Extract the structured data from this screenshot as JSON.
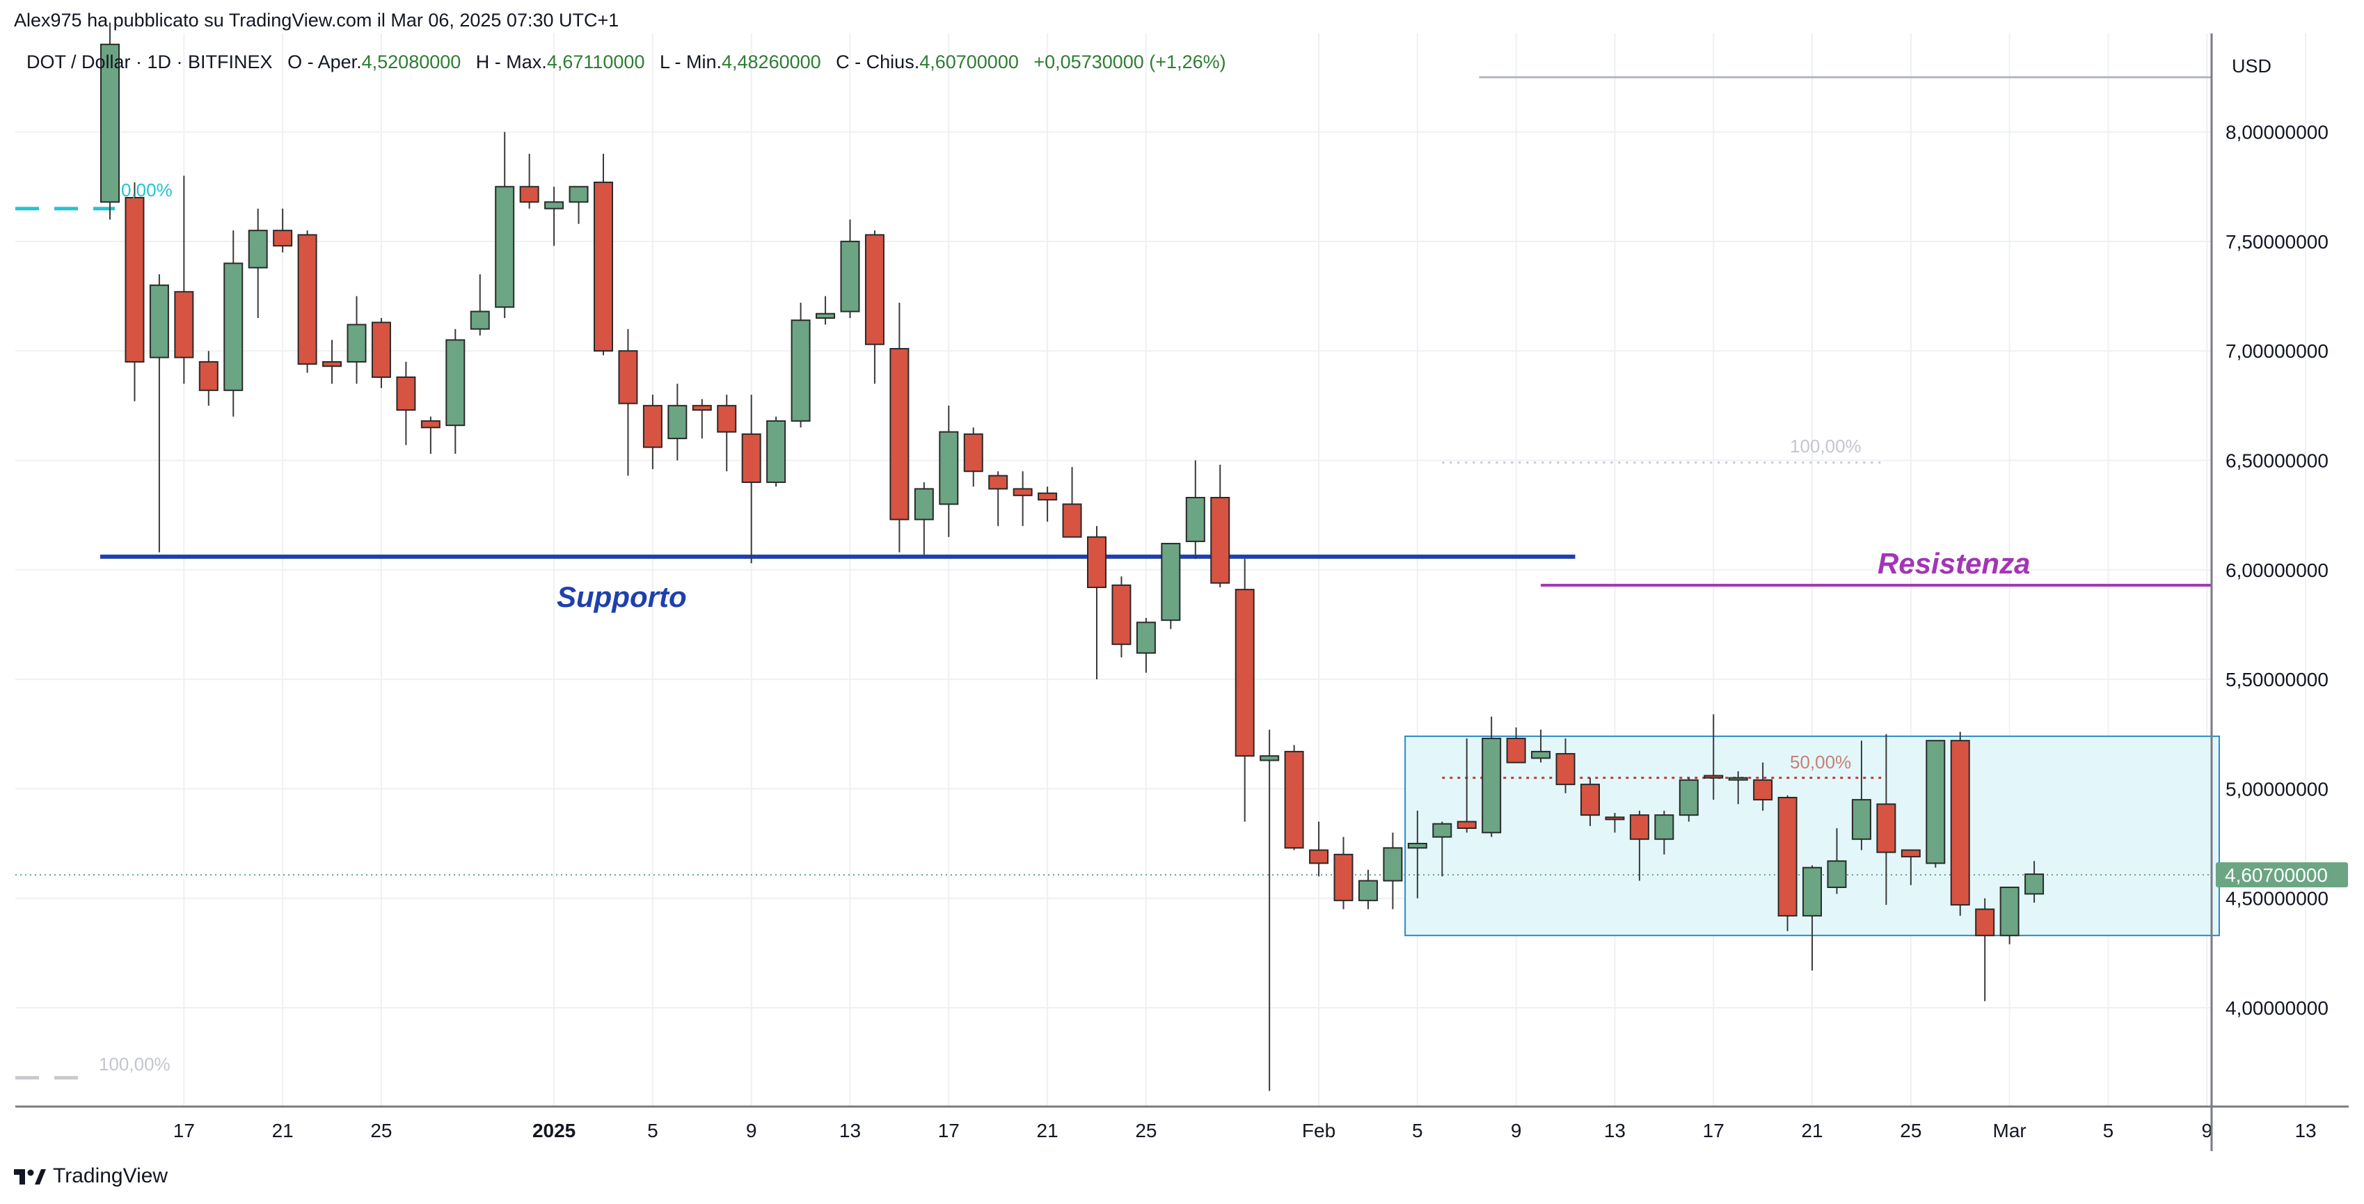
{
  "header": {
    "publish_line": "Alex975 ha pubblicato su TradingView.com il Mar 06, 2025 07:30 UTC+1"
  },
  "legend": {
    "symbol": "DOT / Dollar · 1D · BITFINEX",
    "o_label": "O - Aper.",
    "o_value": "4,52080000",
    "h_label": "H - Max.",
    "h_value": "4,67110000",
    "l_label": "L - Min.",
    "l_value": "4,48260000",
    "c_label": "C - Chius.",
    "c_value": "4,60700000",
    "change": "+0,05730000 (+1,26%)"
  },
  "footer": {
    "brand": "TradingView"
  },
  "colors": {
    "up": "#6ba583",
    "down": "#d75442",
    "support": "#1e40af",
    "resistance": "#a335b5",
    "box_fill": "#e3f7fb",
    "box_stroke": "#2b8ac6",
    "fib_cyan": "#22c5d0",
    "fib_red": "#c0392b",
    "price_tag": "#6ba583"
  },
  "chart_data": {
    "type": "candlestick",
    "currency": "USD",
    "y_axis": {
      "ticks": [
        4.0,
        4.5,
        5.0,
        5.5,
        6.0,
        6.5,
        7.0,
        7.5,
        8.0
      ],
      "tick_labels": [
        "4,00000000",
        "4,50000000",
        "5,00000000",
        "5,50000000",
        "6,00000000",
        "6,50000000",
        "7,00000000",
        "7,50000000",
        "8,00000000"
      ]
    },
    "x_axis": {
      "ticks": [
        {
          "label": "17",
          "i": 3,
          "bold": false
        },
        {
          "label": "21",
          "i": 7,
          "bold": false
        },
        {
          "label": "25",
          "i": 11,
          "bold": false
        },
        {
          "label": "2025",
          "i": 18,
          "bold": true
        },
        {
          "label": "5",
          "i": 22,
          "bold": false
        },
        {
          "label": "9",
          "i": 26,
          "bold": false
        },
        {
          "label": "13",
          "i": 30,
          "bold": false
        },
        {
          "label": "17",
          "i": 34,
          "bold": false
        },
        {
          "label": "21",
          "i": 38,
          "bold": false
        },
        {
          "label": "25",
          "i": 42,
          "bold": false
        },
        {
          "label": "Feb",
          "i": 49,
          "bold": false
        },
        {
          "label": "5",
          "i": 53,
          "bold": false
        },
        {
          "label": "9",
          "i": 57,
          "bold": false
        },
        {
          "label": "13",
          "i": 61,
          "bold": false
        },
        {
          "label": "17",
          "i": 65,
          "bold": false
        },
        {
          "label": "21",
          "i": 69,
          "bold": false
        },
        {
          "label": "25",
          "i": 73,
          "bold": false
        },
        {
          "label": "Mar",
          "i": 77,
          "bold": false
        },
        {
          "label": "5",
          "i": 81,
          "bold": false
        },
        {
          "label": "9",
          "i": 85,
          "bold": false
        },
        {
          "label": "13",
          "i": 89,
          "bold": false
        }
      ]
    },
    "candles": [
      [
        7.68,
        8.5,
        7.6,
        8.4
      ],
      [
        7.7,
        7.77,
        6.77,
        6.95
      ],
      [
        6.97,
        7.35,
        6.08,
        7.3
      ],
      [
        7.27,
        7.8,
        6.85,
        6.97
      ],
      [
        6.95,
        7.0,
        6.75,
        6.82
      ],
      [
        6.82,
        7.55,
        6.7,
        7.4
      ],
      [
        7.38,
        7.65,
        7.15,
        7.55
      ],
      [
        7.55,
        7.65,
        7.45,
        7.48
      ],
      [
        7.53,
        7.55,
        6.9,
        6.94
      ],
      [
        6.95,
        7.05,
        6.85,
        6.93
      ],
      [
        6.95,
        7.25,
        6.85,
        7.12
      ],
      [
        7.13,
        7.15,
        6.83,
        6.88
      ],
      [
        6.88,
        6.95,
        6.57,
        6.73
      ],
      [
        6.68,
        6.7,
        6.53,
        6.65
      ],
      [
        6.66,
        7.1,
        6.53,
        7.05
      ],
      [
        7.1,
        7.35,
        7.07,
        7.18
      ],
      [
        7.2,
        8.0,
        7.15,
        7.75
      ],
      [
        7.75,
        7.9,
        7.65,
        7.68
      ],
      [
        7.65,
        7.75,
        7.48,
        7.68
      ],
      [
        7.68,
        7.75,
        7.58,
        7.75
      ],
      [
        7.77,
        7.9,
        6.98,
        7.0
      ],
      [
        7.0,
        7.1,
        6.43,
        6.76
      ],
      [
        6.75,
        6.8,
        6.46,
        6.56
      ],
      [
        6.6,
        6.85,
        6.5,
        6.75
      ],
      [
        6.75,
        6.78,
        6.6,
        6.73
      ],
      [
        6.75,
        6.8,
        6.45,
        6.63
      ],
      [
        6.62,
        6.8,
        6.03,
        6.4
      ],
      [
        6.4,
        6.7,
        6.38,
        6.68
      ],
      [
        6.68,
        7.22,
        6.65,
        7.14
      ],
      [
        7.15,
        7.25,
        7.12,
        7.17
      ],
      [
        7.18,
        7.6,
        7.15,
        7.5
      ],
      [
        7.53,
        7.55,
        6.85,
        7.03
      ],
      [
        7.01,
        7.22,
        6.08,
        6.23
      ],
      [
        6.23,
        6.4,
        6.07,
        6.37
      ],
      [
        6.3,
        6.75,
        6.15,
        6.63
      ],
      [
        6.62,
        6.65,
        6.38,
        6.45
      ],
      [
        6.43,
        6.45,
        6.2,
        6.37
      ],
      [
        6.37,
        6.45,
        6.2,
        6.34
      ],
      [
        6.35,
        6.38,
        6.22,
        6.32
      ],
      [
        6.3,
        6.47,
        6.15,
        6.15
      ],
      [
        6.15,
        6.2,
        5.5,
        5.92
      ],
      [
        5.93,
        5.97,
        5.6,
        5.66
      ],
      [
        5.62,
        5.78,
        5.53,
        5.76
      ],
      [
        5.77,
        6.1,
        5.73,
        6.12
      ],
      [
        6.13,
        6.5,
        6.05,
        6.33
      ],
      [
        6.33,
        6.48,
        5.92,
        5.94
      ],
      [
        5.91,
        6.05,
        4.85,
        5.15
      ],
      [
        5.13,
        5.27,
        3.62,
        5.15
      ],
      [
        5.17,
        5.2,
        4.72,
        4.73
      ],
      [
        4.72,
        4.85,
        4.6,
        4.66
      ],
      [
        4.7,
        4.78,
        4.45,
        4.49
      ],
      [
        4.49,
        4.63,
        4.45,
        4.58
      ],
      [
        4.58,
        4.8,
        4.45,
        4.73
      ],
      [
        4.73,
        4.9,
        4.5,
        4.75
      ],
      [
        4.78,
        4.85,
        4.6,
        4.84
      ],
      [
        4.85,
        5.23,
        4.8,
        4.82
      ],
      [
        4.8,
        5.33,
        4.78,
        5.23
      ],
      [
        5.23,
        5.28,
        5.12,
        5.12
      ],
      [
        5.14,
        5.27,
        5.12,
        5.17
      ],
      [
        5.16,
        5.23,
        4.98,
        5.02
      ],
      [
        5.02,
        5.05,
        4.83,
        4.88
      ],
      [
        4.87,
        4.89,
        4.8,
        4.86
      ],
      [
        4.88,
        4.9,
        4.58,
        4.77
      ],
      [
        4.77,
        4.9,
        4.7,
        4.88
      ],
      [
        4.88,
        5.05,
        4.85,
        5.04
      ],
      [
        5.06,
        5.34,
        4.95,
        5.05
      ],
      [
        5.05,
        5.08,
        4.93,
        5.05
      ],
      [
        5.04,
        5.12,
        4.9,
        4.95
      ],
      [
        4.96,
        4.97,
        4.35,
        4.42
      ],
      [
        4.42,
        4.65,
        4.17,
        4.64
      ],
      [
        4.55,
        4.82,
        4.52,
        4.67
      ],
      [
        4.77,
        5.22,
        4.72,
        4.95
      ],
      [
        4.93,
        5.25,
        4.47,
        4.71
      ],
      [
        4.72,
        4.72,
        4.56,
        4.69
      ],
      [
        4.66,
        5.22,
        4.64,
        5.22
      ],
      [
        5.22,
        5.26,
        4.42,
        4.47
      ],
      [
        4.45,
        4.5,
        4.03,
        4.33
      ],
      [
        4.33,
        4.53,
        4.29,
        4.55
      ],
      [
        4.52,
        4.67,
        4.48,
        4.61
      ]
    ],
    "support": {
      "label": "Supporto",
      "price": 6.06,
      "from_i": 0,
      "to_i": 59
    },
    "resistance": {
      "label": "Resistenza",
      "price": 5.93,
      "from_i": 58
    },
    "top_line_price": 8.25,
    "range_box": {
      "top": 5.24,
      "bottom": 4.33,
      "from_i": 52.5,
      "to_i": 85.5
    },
    "fib_levels": [
      {
        "label": "0,00%",
        "price": 7.65,
        "color": "cyan"
      },
      {
        "label": "100,00%",
        "price": 3.68,
        "color": "grey"
      },
      {
        "label": "100,00%",
        "price": 6.49,
        "color": "grey"
      },
      {
        "label": "50,00%",
        "price": 5.05,
        "color": "red"
      }
    ],
    "last_price": 4.607,
    "last_price_label": "4,60700000"
  }
}
